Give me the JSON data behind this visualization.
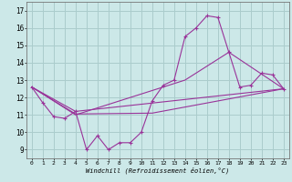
{
  "xlabel": "Windchill (Refroidissement éolien,°C)",
  "background_color": "#cce8e8",
  "grid_color": "#aacccc",
  "line_color": "#993399",
  "xlim": [
    -0.5,
    23.5
  ],
  "ylim": [
    8.5,
    17.5
  ],
  "yticks": [
    9,
    10,
    11,
    12,
    13,
    14,
    15,
    16,
    17
  ],
  "xticks": [
    0,
    1,
    2,
    3,
    4,
    5,
    6,
    7,
    8,
    9,
    10,
    11,
    12,
    13,
    14,
    15,
    16,
    17,
    18,
    19,
    20,
    21,
    22,
    23
  ],
  "series": [
    [
      0,
      12.6
    ],
    [
      1,
      11.7
    ],
    [
      2,
      10.9
    ],
    [
      3,
      10.8
    ],
    [
      4,
      11.2
    ],
    [
      5,
      9.0
    ],
    [
      6,
      9.8
    ],
    [
      7,
      9.0
    ],
    [
      8,
      9.4
    ],
    [
      9,
      9.4
    ],
    [
      10,
      10.0
    ],
    [
      11,
      11.8
    ],
    [
      12,
      12.7
    ],
    [
      13,
      13.0
    ],
    [
      14,
      15.5
    ],
    [
      15,
      16.0
    ],
    [
      16,
      16.7
    ],
    [
      17,
      16.6
    ],
    [
      18,
      14.6
    ],
    [
      19,
      12.6
    ],
    [
      20,
      12.7
    ],
    [
      21,
      13.4
    ],
    [
      22,
      13.3
    ],
    [
      23,
      12.5
    ]
  ],
  "line2": [
    [
      0,
      12.6
    ],
    [
      4,
      11.2
    ],
    [
      23,
      12.5
    ]
  ],
  "line3": [
    [
      0,
      12.6
    ],
    [
      4,
      11.05
    ],
    [
      11,
      11.1
    ],
    [
      23,
      12.5
    ]
  ],
  "line4": [
    [
      0,
      12.6
    ],
    [
      4,
      11.0
    ],
    [
      14,
      13.0
    ],
    [
      18,
      14.6
    ],
    [
      23,
      12.5
    ]
  ]
}
